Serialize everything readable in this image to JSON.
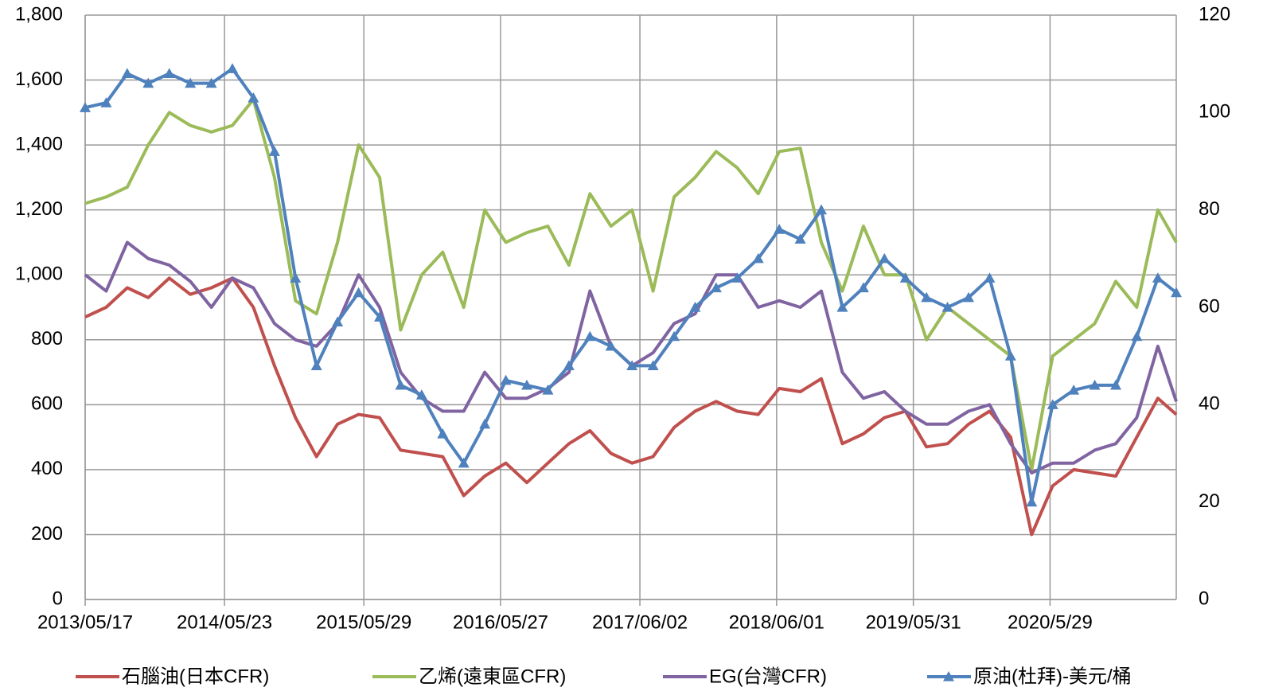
{
  "chart_data": {
    "type": "line",
    "x": [
      0,
      8,
      16,
      24,
      32,
      40,
      48,
      56,
      64,
      72,
      80,
      88,
      96,
      104,
      112,
      120,
      128,
      136,
      144,
      152,
      160,
      168,
      176,
      184,
      192,
      200,
      208,
      216,
      224,
      232,
      240,
      248,
      256,
      264,
      272,
      280,
      288,
      296,
      304,
      312,
      320,
      328,
      336,
      344,
      352,
      360,
      368,
      376,
      384,
      392,
      400,
      408,
      415
    ],
    "xlim": [
      0,
      415
    ],
    "xticks": [
      {
        "value": 0,
        "label": "2013/05/17"
      },
      {
        "value": 53,
        "label": "2014/05/23"
      },
      {
        "value": 106,
        "label": "2015/05/29"
      },
      {
        "value": 158,
        "label": "2016/05/27"
      },
      {
        "value": 211,
        "label": "2017/06/02"
      },
      {
        "value": 263,
        "label": "2018/06/01"
      },
      {
        "value": 315,
        "label": "2019/05/31"
      },
      {
        "value": 367,
        "label": "2020/5/29"
      }
    ],
    "ylim": [
      0,
      1800
    ],
    "yticks": [
      0,
      200,
      400,
      600,
      800,
      {
        "value": 1000,
        "label": "1,000"
      },
      {
        "value": 1200,
        "label": "1,200"
      },
      {
        "value": 1400,
        "label": "1,400"
      },
      {
        "value": 1600,
        "label": "1,600"
      },
      {
        "value": 1800,
        "label": "1,800"
      }
    ],
    "y2lim": [
      0,
      120
    ],
    "y2ticks": [
      0,
      20,
      40,
      60,
      80,
      100,
      120
    ],
    "grid": true,
    "legend": "bottom",
    "series": [
      {
        "name": "石腦油(日本CFR)",
        "color": "#c0504d",
        "values": [
          870,
          900,
          960,
          930,
          990,
          940,
          960,
          990,
          900,
          720,
          560,
          440,
          540,
          570,
          560,
          460,
          450,
          440,
          320,
          380,
          420,
          360,
          420,
          480,
          520,
          450,
          420,
          440,
          530,
          580,
          610,
          580,
          570,
          650,
          640,
          680,
          480,
          510,
          560,
          580,
          470,
          480,
          540,
          580,
          500,
          200,
          350,
          400,
          390,
          380,
          500,
          620,
          570
        ]
      },
      {
        "name": "乙烯(遠東區CFR)",
        "color": "#9bbb59",
        "values": [
          1220,
          1240,
          1270,
          1400,
          1500,
          1460,
          1440,
          1460,
          1540,
          1300,
          920,
          880,
          1100,
          1400,
          1300,
          830,
          1000,
          1070,
          900,
          1200,
          1100,
          1130,
          1150,
          1030,
          1250,
          1150,
          1200,
          950,
          1240,
          1300,
          1380,
          1330,
          1250,
          1380,
          1390,
          1100,
          950,
          1150,
          1000,
          1000,
          800,
          900,
          850,
          800,
          750,
          400,
          750,
          800,
          850,
          980,
          900,
          1200,
          1100
        ]
      },
      {
        "name": "EG(台灣CFR)",
        "color": "#8064a2",
        "values": [
          1000,
          950,
          1100,
          1050,
          1030,
          980,
          900,
          990,
          960,
          850,
          800,
          780,
          850,
          1000,
          900,
          700,
          620,
          580,
          580,
          700,
          620,
          620,
          650,
          700,
          950,
          780,
          720,
          760,
          850,
          880,
          1000,
          1000,
          900,
          920,
          900,
          950,
          700,
          620,
          640,
          580,
          540,
          540,
          580,
          600,
          480,
          390,
          420,
          420,
          460,
          480,
          560,
          780,
          610
        ]
      },
      {
        "name": "原油(杜拜)-美元/桶",
        "color": "#4f81bd",
        "axis": "y2",
        "marker": "triangle",
        "values": [
          101,
          102,
          108,
          106,
          108,
          106,
          106,
          109,
          103,
          92,
          66,
          48,
          57,
          63,
          58,
          44,
          42,
          34,
          28,
          36,
          45,
          44,
          43,
          48,
          54,
          52,
          48,
          48,
          54,
          60,
          64,
          66,
          70,
          76,
          74,
          80,
          60,
          64,
          70,
          66,
          62,
          60,
          62,
          66,
          50,
          20,
          40,
          43,
          44,
          44,
          54,
          66,
          63
        ]
      }
    ]
  }
}
